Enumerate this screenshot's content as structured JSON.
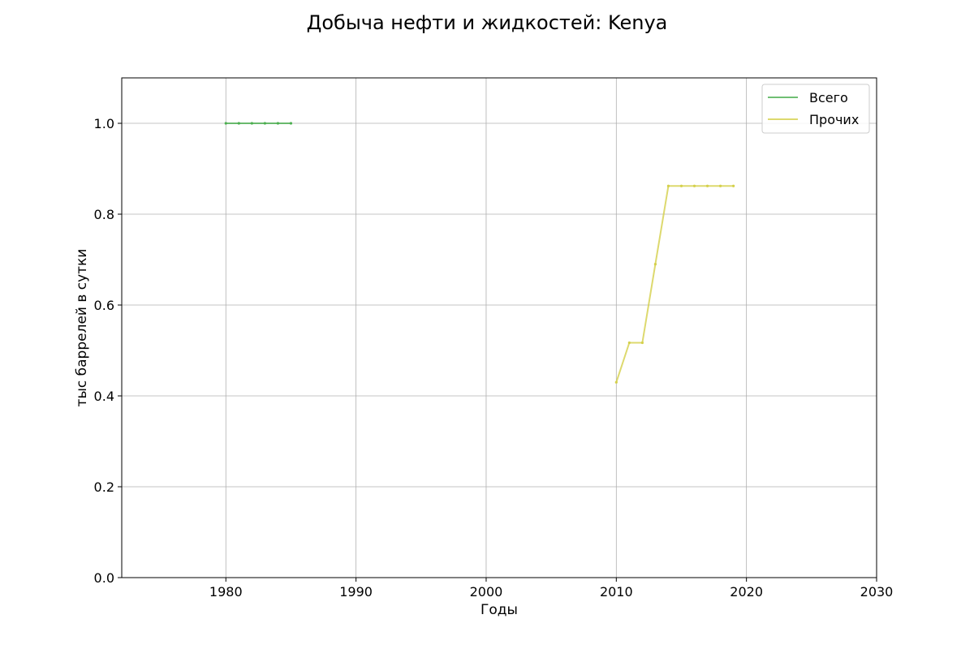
{
  "chart_data": {
    "type": "line",
    "title": "Добыча нефти и жидкостей: Kenya",
    "xlabel": "Годы",
    "ylabel": "тыс баррелей в сутки",
    "xlim": [
      1972,
      2030
    ],
    "ylim": [
      0,
      1.1
    ],
    "xticks": [
      1980,
      1990,
      2000,
      2010,
      2020,
      2030
    ],
    "yticks": [
      0.0,
      0.2,
      0.4,
      0.6,
      0.8,
      1.0
    ],
    "xtick_labels": [
      "1980",
      "1990",
      "2000",
      "2010",
      "2020",
      "2030"
    ],
    "ytick_labels": [
      "0.0",
      "0.2",
      "0.4",
      "0.6",
      "0.8",
      "1.0"
    ],
    "grid": true,
    "legend_position": "top-right",
    "series": [
      {
        "name": "Всего",
        "color": "#4caf50",
        "x": [
          1980,
          1981,
          1982,
          1983,
          1984,
          1985
        ],
        "y": [
          1.0,
          1.0,
          1.0,
          1.0,
          1.0,
          1.0
        ]
      },
      {
        "name": "Прочих",
        "color": "#d4d04a",
        "x": [
          2010,
          2011,
          2012,
          2013,
          2014,
          2015,
          2016,
          2017,
          2018,
          2019
        ],
        "y": [
          0.43,
          0.517,
          0.517,
          0.69,
          0.862,
          0.862,
          0.862,
          0.862,
          0.862,
          0.862
        ]
      }
    ]
  }
}
